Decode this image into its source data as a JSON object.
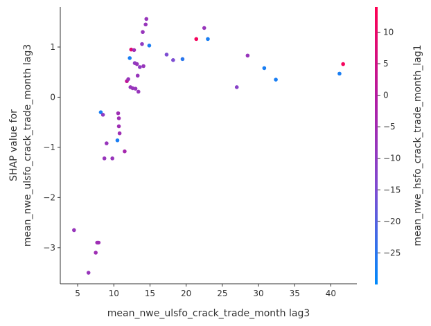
{
  "chart_data": {
    "type": "scatter",
    "xlabel": "mean_nwe_ulsfo_crack_trade_month lag3",
    "ylabel_line1": "SHAP value for",
    "ylabel_line2": "mean_nwe_ulsfo_crack_trade_month lag3",
    "colorbar_label": "mean_nwe_hsfo_crack_trade_month_lag1",
    "xlim": [
      2.6,
      43.6
    ],
    "ylim": [
      -3.72,
      1.8
    ],
    "x_ticks": [
      5,
      10,
      15,
      20,
      25,
      30,
      35,
      40
    ],
    "y_ticks": [
      -3,
      -2,
      -1,
      0,
      1
    ],
    "color_range": [
      -30,
      14
    ],
    "color_ticks": [
      -25,
      -20,
      -15,
      -10,
      -5,
      0,
      5,
      10
    ],
    "colormap": [
      "#008afb",
      "#7c4ed3",
      "#b21ba3",
      "#ff0052"
    ],
    "grid": false,
    "points": [
      {
        "x": 4.5,
        "y": -2.65,
        "c": -8
      },
      {
        "x": 6.5,
        "y": -3.5,
        "c": -8
      },
      {
        "x": 7.5,
        "y": -3.1,
        "c": -6
      },
      {
        "x": 7.7,
        "y": -2.9,
        "c": -6
      },
      {
        "x": 7.9,
        "y": -2.9,
        "c": -6
      },
      {
        "x": 8.2,
        "y": -0.3,
        "c": -27
      },
      {
        "x": 8.5,
        "y": -0.35,
        "c": -10
      },
      {
        "x": 8.7,
        "y": -1.22,
        "c": -8
      },
      {
        "x": 9.0,
        "y": -0.92,
        "c": -8
      },
      {
        "x": 9.8,
        "y": -1.22,
        "c": -8
      },
      {
        "x": 10.5,
        "y": -0.86,
        "c": -27
      },
      {
        "x": 10.6,
        "y": -0.32,
        "c": -6
      },
      {
        "x": 10.7,
        "y": -0.42,
        "c": -6
      },
      {
        "x": 10.7,
        "y": -0.58,
        "c": -6
      },
      {
        "x": 10.8,
        "y": -0.72,
        "c": -6
      },
      {
        "x": 11.5,
        "y": -1.08,
        "c": -4
      },
      {
        "x": 11.8,
        "y": 0.32,
        "c": 2
      },
      {
        "x": 12.0,
        "y": 0.36,
        "c": -8
      },
      {
        "x": 12.2,
        "y": 0.78,
        "c": -27
      },
      {
        "x": 12.3,
        "y": 0.2,
        "c": -8
      },
      {
        "x": 12.4,
        "y": 0.95,
        "c": 8
      },
      {
        "x": 12.6,
        "y": 0.18,
        "c": -8
      },
      {
        "x": 12.8,
        "y": 0.94,
        "c": -6
      },
      {
        "x": 12.9,
        "y": 0.68,
        "c": -10
      },
      {
        "x": 13.0,
        "y": 0.17,
        "c": -8
      },
      {
        "x": 13.2,
        "y": 0.66,
        "c": -8
      },
      {
        "x": 13.3,
        "y": 0.43,
        "c": -8
      },
      {
        "x": 13.4,
        "y": 0.11,
        "c": -8
      },
      {
        "x": 13.6,
        "y": 0.6,
        "c": -10
      },
      {
        "x": 13.9,
        "y": 1.06,
        "c": -10
      },
      {
        "x": 14.0,
        "y": 1.3,
        "c": -8
      },
      {
        "x": 14.1,
        "y": 0.62,
        "c": -8
      },
      {
        "x": 14.4,
        "y": 1.45,
        "c": -8
      },
      {
        "x": 14.5,
        "y": 1.56,
        "c": -8
      },
      {
        "x": 14.9,
        "y": 1.03,
        "c": -27
      },
      {
        "x": 17.3,
        "y": 0.85,
        "c": -15
      },
      {
        "x": 18.2,
        "y": 0.74,
        "c": -15
      },
      {
        "x": 19.5,
        "y": 0.76,
        "c": -25
      },
      {
        "x": 21.4,
        "y": 1.16,
        "c": 12
      },
      {
        "x": 22.5,
        "y": 1.38,
        "c": -8
      },
      {
        "x": 23.0,
        "y": 1.16,
        "c": -27
      },
      {
        "x": 27.0,
        "y": 0.2,
        "c": -12
      },
      {
        "x": 28.5,
        "y": 0.83,
        "c": -8
      },
      {
        "x": 30.8,
        "y": 0.58,
        "c": -27
      },
      {
        "x": 32.4,
        "y": 0.35,
        "c": -27
      },
      {
        "x": 41.2,
        "y": 0.47,
        "c": -27
      },
      {
        "x": 41.7,
        "y": 0.66,
        "c": 12
      }
    ]
  }
}
